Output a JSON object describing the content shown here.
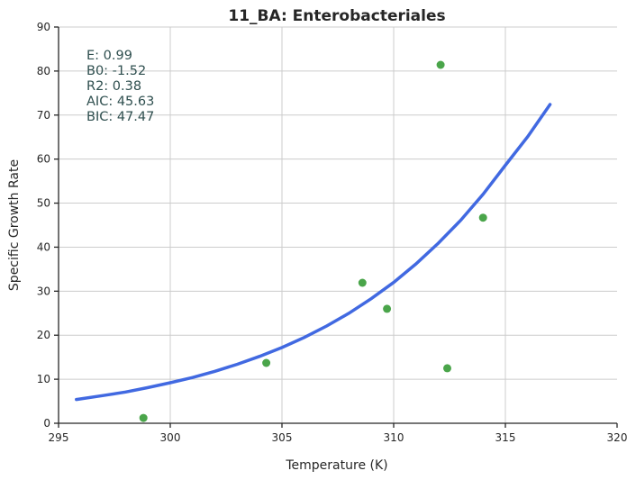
{
  "chart_data": {
    "type": "scatter",
    "title": "11_BA: Enterobacteriales",
    "xlabel": "Temperature (K)",
    "ylabel": "Specific Growth Rate",
    "xlim": [
      295,
      320
    ],
    "ylim": [
      0,
      90
    ],
    "xticks": [
      "295",
      "300",
      "305",
      "310",
      "315",
      "320"
    ],
    "yticks": [
      "0",
      "10",
      "20",
      "30",
      "40",
      "50",
      "60",
      "70",
      "80",
      "90"
    ],
    "grid": true,
    "points": {
      "color": "#4aa54a",
      "x": [
        298.8,
        304.3,
        308.6,
        309.7,
        312.1,
        312.4,
        314.0
      ],
      "y": [
        1.2,
        13.7,
        31.9,
        26.0,
        81.4,
        12.5,
        46.7
      ]
    },
    "fit_curve": {
      "color": "#4169e1",
      "x": [
        295.8,
        297.0,
        298.0,
        299.0,
        300.0,
        301.0,
        302.0,
        303.0,
        304.0,
        305.0,
        306.0,
        307.0,
        308.0,
        309.0,
        310.0,
        311.0,
        312.0,
        313.0,
        314.0,
        315.0,
        316.0,
        317.0
      ],
      "y": [
        5.4,
        6.3,
        7.1,
        8.1,
        9.2,
        10.4,
        11.8,
        13.4,
        15.2,
        17.2,
        19.5,
        22.1,
        25.0,
        28.3,
        32.0,
        36.2,
        40.9,
        46.1,
        52.0,
        58.6,
        65.1,
        72.4
      ]
    },
    "annotations": [
      "E:  0.99",
      "B0:  -1.52",
      "R2:  0.38",
      "AIC: 45.63",
      "BIC: 47.47"
    ]
  }
}
